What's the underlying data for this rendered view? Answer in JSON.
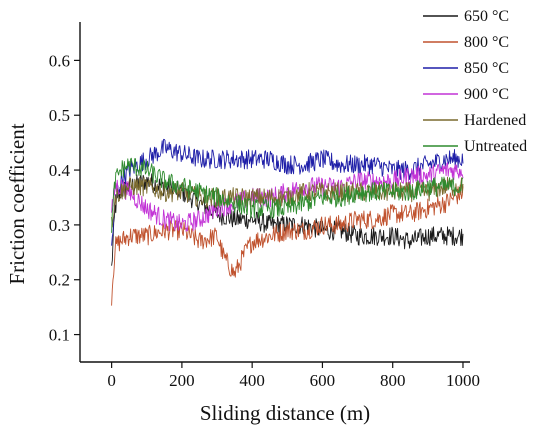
{
  "chart_data": {
    "type": "line",
    "title": "",
    "xlabel": "Sliding distance (m)",
    "ylabel": "Friction coefficient",
    "xlim": [
      -90,
      1020
    ],
    "ylim": [
      0.05,
      0.67
    ],
    "xticks": [
      0,
      200,
      400,
      600,
      800,
      1000
    ],
    "xtick_labels": [
      "0",
      "200",
      "400",
      "600",
      "800",
      "1000"
    ],
    "yticks": [
      0.1,
      0.2,
      0.3,
      0.4,
      0.5,
      0.6
    ],
    "ytick_labels": [
      "0.1",
      "0.2",
      "0.3",
      "0.4",
      "0.5",
      "0.6"
    ],
    "grid": false,
    "legend_position": "top-right",
    "series": [
      {
        "name": "650 °C",
        "color": "#1a1a1a",
        "x": [
          0,
          10,
          25,
          50,
          100,
          150,
          200,
          250,
          300,
          350,
          400,
          450,
          500,
          550,
          600,
          650,
          700,
          750,
          800,
          850,
          900,
          950,
          1000
        ],
        "values": [
          0.22,
          0.33,
          0.36,
          0.37,
          0.38,
          0.37,
          0.36,
          0.34,
          0.32,
          0.31,
          0.31,
          0.3,
          0.3,
          0.3,
          0.29,
          0.29,
          0.28,
          0.28,
          0.28,
          0.27,
          0.28,
          0.28,
          0.28
        ]
      },
      {
        "name": "800 °C",
        "color": "#c0522e",
        "x": [
          0,
          10,
          25,
          50,
          100,
          150,
          200,
          250,
          300,
          320,
          350,
          380,
          400,
          450,
          500,
          550,
          600,
          650,
          700,
          750,
          800,
          850,
          900,
          950,
          1000
        ],
        "values": [
          0.17,
          0.26,
          0.27,
          0.28,
          0.28,
          0.29,
          0.29,
          0.27,
          0.28,
          0.24,
          0.21,
          0.25,
          0.27,
          0.28,
          0.29,
          0.29,
          0.3,
          0.3,
          0.31,
          0.31,
          0.32,
          0.32,
          0.33,
          0.34,
          0.36
        ]
      },
      {
        "name": "850 °C",
        "color": "#1f1fa8",
        "x": [
          0,
          10,
          25,
          50,
          100,
          150,
          200,
          250,
          300,
          350,
          400,
          450,
          500,
          550,
          600,
          650,
          700,
          750,
          800,
          850,
          900,
          950,
          1000
        ],
        "values": [
          0.26,
          0.34,
          0.38,
          0.4,
          0.42,
          0.44,
          0.43,
          0.42,
          0.42,
          0.42,
          0.42,
          0.42,
          0.41,
          0.41,
          0.42,
          0.41,
          0.41,
          0.41,
          0.4,
          0.4,
          0.41,
          0.42,
          0.42
        ]
      },
      {
        "name": "900 °C",
        "color": "#c233d6",
        "x": [
          0,
          10,
          25,
          50,
          100,
          150,
          200,
          250,
          300,
          350,
          400,
          450,
          500,
          550,
          600,
          650,
          700,
          750,
          800,
          850,
          900,
          950,
          1000
        ],
        "values": [
          0.32,
          0.37,
          0.37,
          0.36,
          0.33,
          0.31,
          0.3,
          0.31,
          0.33,
          0.34,
          0.35,
          0.35,
          0.36,
          0.37,
          0.37,
          0.37,
          0.38,
          0.38,
          0.38,
          0.39,
          0.39,
          0.4,
          0.4
        ]
      },
      {
        "name": "Hardened",
        "color": "#7a6a2e",
        "x": [
          0,
          10,
          25,
          50,
          100,
          150,
          200,
          250,
          300,
          350,
          400,
          450,
          500,
          550,
          600,
          650,
          700,
          750,
          800,
          850,
          900,
          950,
          1000
        ],
        "values": [
          0.3,
          0.35,
          0.36,
          0.37,
          0.37,
          0.36,
          0.36,
          0.35,
          0.35,
          0.35,
          0.35,
          0.35,
          0.35,
          0.36,
          0.36,
          0.36,
          0.36,
          0.36,
          0.36,
          0.36,
          0.36,
          0.37,
          0.37
        ]
      },
      {
        "name": "Untreated",
        "color": "#2e8b2e",
        "x": [
          0,
          10,
          25,
          50,
          100,
          150,
          200,
          250,
          300,
          350,
          400,
          450,
          500,
          550,
          600,
          650,
          700,
          750,
          800,
          850,
          900,
          950,
          1000
        ],
        "values": [
          0.3,
          0.38,
          0.4,
          0.41,
          0.4,
          0.38,
          0.37,
          0.36,
          0.35,
          0.34,
          0.33,
          0.33,
          0.33,
          0.34,
          0.35,
          0.35,
          0.36,
          0.36,
          0.36,
          0.36,
          0.37,
          0.37,
          0.37
        ]
      }
    ]
  }
}
